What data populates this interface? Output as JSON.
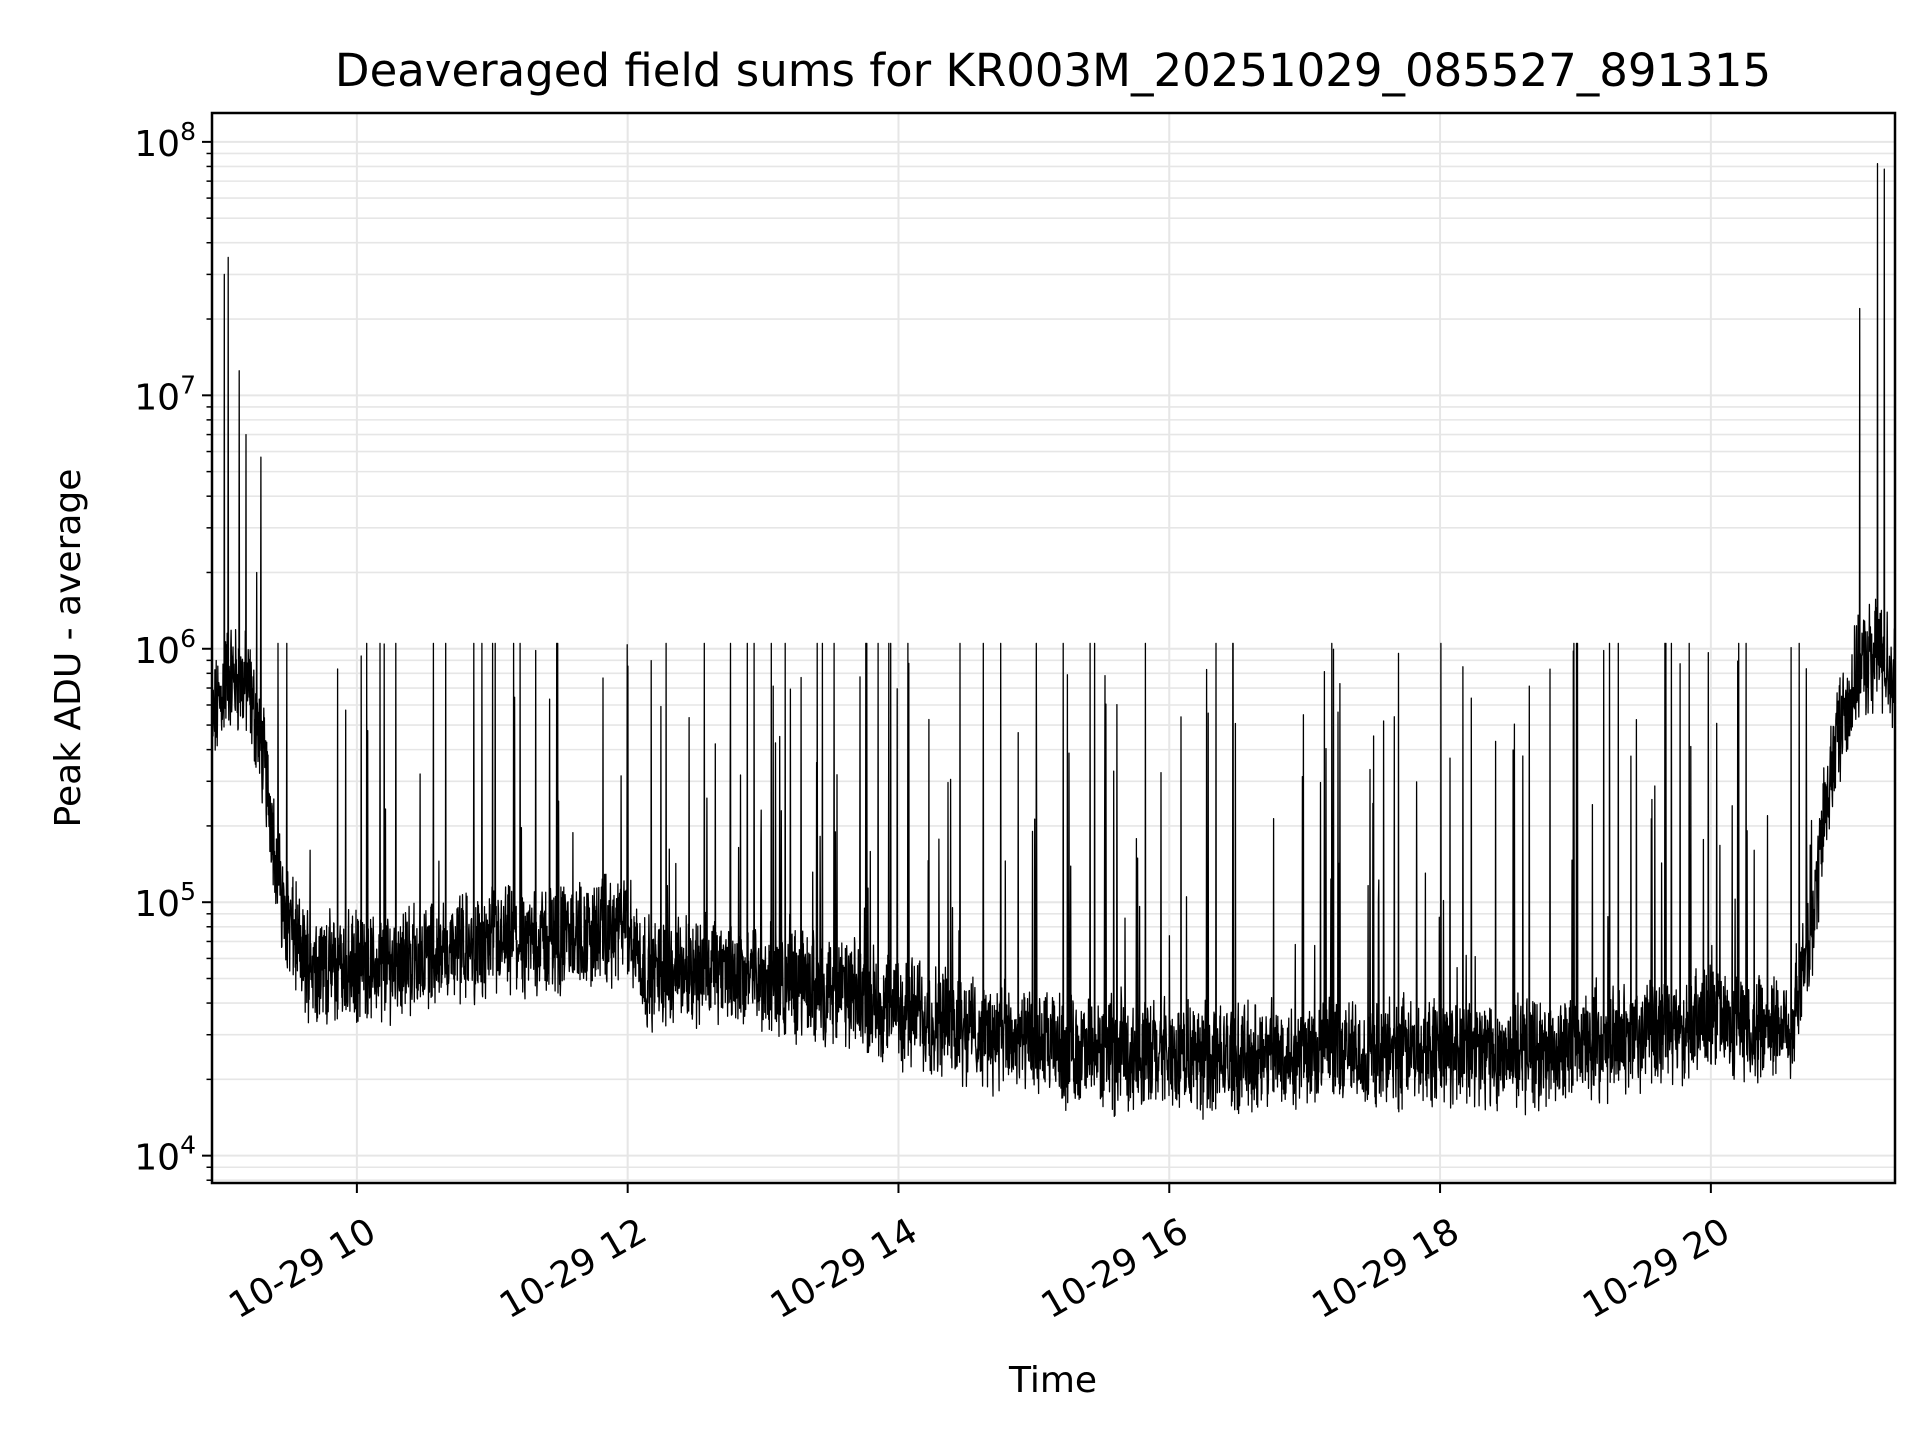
{
  "chart_data": {
    "type": "line",
    "title": "Deaveraged field sums for KR003M_20251029_085527_891315",
    "xlabel": "Time",
    "ylabel": "Peak ADU - average",
    "yscale": "log",
    "ylim": [
      7800,
      130000000
    ],
    "xlim": [
      8.93,
      21.36
    ],
    "grid": true,
    "x_ticks": [
      {
        "value": 10,
        "label": "10-29 10"
      },
      {
        "value": 12,
        "label": "10-29 12"
      },
      {
        "value": 14,
        "label": "10-29 14"
      },
      {
        "value": 16,
        "label": "10-29 16"
      },
      {
        "value": 18,
        "label": "10-29 18"
      },
      {
        "value": 20,
        "label": "10-29 20"
      }
    ],
    "y_ticks": [
      {
        "value": 10000,
        "base": "10",
        "exp": "4"
      },
      {
        "value": 100000,
        "base": "10",
        "exp": "5"
      },
      {
        "value": 1000000,
        "base": "10",
        "exp": "6"
      },
      {
        "value": 10000000,
        "base": "10",
        "exp": "7"
      },
      {
        "value": 100000000,
        "base": "10",
        "exp": "8"
      }
    ],
    "series": [
      {
        "name": "Peak ADU - average",
        "color": "#000000",
        "baseline": {
          "x": [
            8.93,
            9.05,
            9.2,
            9.3,
            9.38,
            9.45,
            9.6,
            9.8,
            10.1,
            10.5,
            11.0,
            11.5,
            12.0,
            12.15,
            12.5,
            13.0,
            13.5,
            14.0,
            14.5,
            15.0,
            15.5,
            16.0,
            16.5,
            17.0,
            17.5,
            18.0,
            18.5,
            19.0,
            19.5,
            20.0,
            20.3,
            20.6,
            20.75,
            20.85,
            20.95,
            21.05,
            21.15,
            21.25,
            21.36
          ],
          "y": [
            500000,
            800000,
            700000,
            400000,
            200000,
            100000,
            60000,
            55000,
            55000,
            62000,
            68000,
            72000,
            78000,
            52000,
            55000,
            50000,
            45000,
            38000,
            32000,
            27000,
            25000,
            25000,
            24000,
            26000,
            25000,
            27000,
            25000,
            26000,
            30000,
            34000,
            33000,
            33000,
            80000,
            250000,
            500000,
            700000,
            900000,
            950000,
            800000
          ]
        },
        "spikes": [
          {
            "x": 9.02,
            "y": 30000000
          },
          {
            "x": 9.05,
            "y": 35000000
          },
          {
            "x": 9.13,
            "y": 12500000
          },
          {
            "x": 9.18,
            "y": 7000000
          },
          {
            "x": 9.26,
            "y": 2000000
          },
          {
            "x": 9.29,
            "y": 5700000
          },
          {
            "x": 21.1,
            "y": 22000000
          },
          {
            "x": 21.23,
            "y": 82000000
          },
          {
            "x": 21.28,
            "y": 78000000
          }
        ],
        "spike_cap": 1050000,
        "min_value": 11500
      }
    ]
  }
}
